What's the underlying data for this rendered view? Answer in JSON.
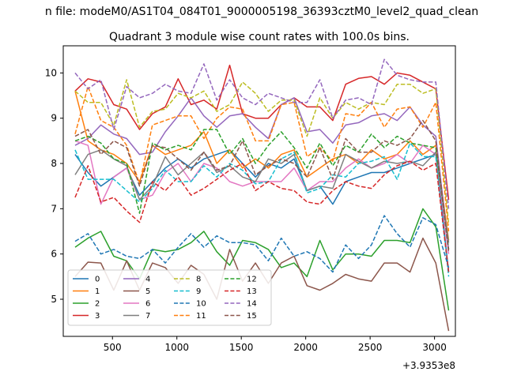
{
  "chart_data": {
    "type": "line",
    "supertitle": "n file: modeM0/AS1T04_084T01_9000005198_36393cztM0_level2_quad_clean",
    "title": "Quadrant 3 module wise count rates with 100.0s bins.",
    "xlabel": "",
    "ylabel": "",
    "x_offset_label": "+3.9353e8",
    "xlim": [
      118,
      3162
    ],
    "ylim": [
      4.18,
      10.6
    ],
    "xticks": [
      500,
      1000,
      1500,
      2000,
      2500,
      3000
    ],
    "yticks": [
      5,
      6,
      7,
      8,
      9,
      10
    ],
    "grid": false,
    "legend_position": "lower-left",
    "legend_columns": 4,
    "x": [
      210,
      310,
      410,
      510,
      610,
      710,
      810,
      910,
      1010,
      1110,
      1210,
      1310,
      1410,
      1510,
      1610,
      1710,
      1810,
      1910,
      2010,
      2110,
      2210,
      2310,
      2410,
      2510,
      2610,
      2710,
      2810,
      2910,
      3010,
      3110
    ],
    "series": [
      {
        "name": "0",
        "color": "#1f77b4",
        "dash": false,
        "values": [
          8.2,
          7.8,
          7.5,
          7.7,
          7.9,
          7.3,
          7.6,
          7.9,
          8.1,
          7.9,
          8.1,
          8.2,
          8.3,
          8.0,
          7.7,
          8.0,
          7.9,
          8.1,
          7.4,
          7.5,
          7.1,
          7.6,
          7.7,
          7.8,
          7.8,
          7.9,
          8.0,
          8.1,
          8.2,
          5.6
        ]
      },
      {
        "name": "1",
        "color": "#ff7f0e",
        "dash": false,
        "values": [
          9.6,
          8.5,
          8.3,
          8.2,
          8.0,
          7.6,
          8.4,
          8.2,
          8.3,
          8.4,
          8.7,
          8.0,
          8.3,
          7.9,
          8.1,
          7.9,
          8.2,
          8.3,
          7.7,
          7.9,
          8.1,
          8.2,
          8.0,
          8.3,
          8.1,
          8.2,
          8.5,
          8.2,
          8.4,
          6.3
        ]
      },
      {
        "name": "2",
        "color": "#2ca02c",
        "dash": false,
        "values": [
          6.15,
          6.35,
          6.5,
          5.95,
          5.85,
          5.45,
          6.1,
          6.05,
          6.1,
          6.25,
          6.5,
          6.05,
          5.75,
          6.3,
          6.25,
          6.1,
          5.7,
          5.8,
          5.5,
          6.3,
          5.65,
          6.0,
          6.0,
          5.95,
          6.3,
          6.3,
          6.25,
          7.0,
          6.6,
          4.75
        ]
      },
      {
        "name": "3",
        "color": "#d62728",
        "dash": false,
        "values": [
          9.6,
          9.87,
          9.8,
          9.3,
          9.2,
          8.75,
          9.1,
          9.25,
          9.87,
          9.3,
          9.4,
          9.2,
          10.17,
          9.1,
          9.0,
          9.0,
          9.3,
          9.45,
          9.25,
          9.25,
          8.95,
          9.75,
          9.88,
          9.92,
          9.75,
          10.0,
          9.95,
          9.8,
          9.65,
          7.2
        ]
      },
      {
        "name": "4",
        "color": "#9467bd",
        "dash": false,
        "values": [
          8.4,
          8.55,
          8.85,
          8.65,
          8.55,
          8.2,
          8.25,
          8.7,
          9.05,
          9.45,
          9.05,
          8.8,
          9.05,
          9.1,
          8.8,
          8.55,
          9.3,
          9.45,
          8.7,
          8.75,
          8.45,
          8.85,
          8.9,
          9.05,
          9.1,
          8.95,
          9.25,
          8.85,
          8.6,
          6.1
        ]
      },
      {
        "name": "5",
        "color": "#8c564b",
        "dash": false,
        "values": [
          5.5,
          5.82,
          5.8,
          5.2,
          5.85,
          5.2,
          5.8,
          5.7,
          5.35,
          5.75,
          5.55,
          5.0,
          6.1,
          5.4,
          5.8,
          5.35,
          5.8,
          5.95,
          5.3,
          5.2,
          5.35,
          5.55,
          5.45,
          5.4,
          5.8,
          5.8,
          5.6,
          6.35,
          5.8,
          4.3
        ]
      },
      {
        "name": "6",
        "color": "#e377c2",
        "dash": false,
        "values": [
          8.5,
          8.4,
          7.1,
          7.7,
          7.9,
          7.2,
          7.3,
          7.8,
          8.0,
          7.6,
          8.0,
          7.9,
          7.6,
          7.5,
          7.6,
          7.6,
          7.6,
          7.9,
          7.4,
          7.6,
          7.6,
          7.9,
          8.1,
          7.9,
          8.0,
          8.2,
          8.0,
          8.4,
          8.2,
          6.0
        ]
      },
      {
        "name": "7",
        "color": "#7f7f7f",
        "dash": false,
        "values": [
          7.75,
          8.2,
          8.3,
          8.1,
          7.95,
          7.2,
          7.5,
          8.15,
          7.75,
          8.0,
          8.25,
          7.8,
          7.95,
          7.7,
          7.6,
          8.1,
          8.0,
          8.2,
          7.4,
          7.5,
          7.45,
          8.2,
          8.05,
          7.9,
          8.05,
          8.0,
          8.05,
          7.95,
          8.25,
          6.25
        ]
      },
      {
        "name": "8",
        "color": "#bcbd22",
        "dash": true,
        "values": [
          9.6,
          9.35,
          9.35,
          8.85,
          9.85,
          8.8,
          9.15,
          9.2,
          9.55,
          9.45,
          9.6,
          9.15,
          9.3,
          9.8,
          9.55,
          9.15,
          9.4,
          9.4,
          8.6,
          9.45,
          9.0,
          9.35,
          9.2,
          9.35,
          9.3,
          9.75,
          9.75,
          9.55,
          9.65,
          6.65
        ]
      },
      {
        "name": "9",
        "color": "#17becf",
        "dash": true,
        "values": [
          8.3,
          7.65,
          7.65,
          7.65,
          7.4,
          7.15,
          7.45,
          7.85,
          7.6,
          7.6,
          7.95,
          7.7,
          8.0,
          7.85,
          7.55,
          7.6,
          8.1,
          8.25,
          7.35,
          7.45,
          7.75,
          7.7,
          8.0,
          8.05,
          8.15,
          7.65,
          8.45,
          8.15,
          8.15,
          5.5
        ]
      },
      {
        "name": "10",
        "color": "#1f77b4",
        "dash": true,
        "values": [
          6.28,
          6.45,
          6.0,
          6.1,
          5.95,
          5.9,
          6.1,
          5.8,
          6.15,
          6.45,
          6.15,
          6.4,
          6.25,
          6.25,
          6.2,
          5.85,
          6.35,
          5.95,
          6.05,
          5.9,
          5.6,
          6.2,
          5.9,
          6.2,
          6.85,
          6.45,
          6.15,
          6.8,
          6.65,
          5.7
        ]
      },
      {
        "name": "11",
        "color": "#ff7f0e",
        "dash": true,
        "values": [
          8.65,
          9.7,
          8.95,
          8.8,
          8.4,
          7.55,
          8.85,
          8.95,
          9.05,
          9.05,
          8.55,
          9.0,
          9.25,
          9.2,
          8.5,
          8.5,
          9.3,
          9.35,
          8.15,
          8.35,
          8.05,
          9.1,
          9.05,
          9.35,
          8.8,
          9.2,
          9.25,
          8.8,
          9.35,
          6.5
        ]
      },
      {
        "name": "12",
        "color": "#2ca02c",
        "dash": true,
        "values": [
          8.5,
          8.6,
          8.45,
          8.1,
          8.0,
          6.9,
          8.45,
          8.3,
          8.4,
          8.3,
          8.75,
          8.75,
          8.2,
          8.55,
          8.0,
          8.4,
          8.7,
          8.35,
          7.9,
          8.45,
          7.95,
          8.4,
          8.25,
          8.65,
          8.35,
          8.6,
          8.45,
          8.4,
          8.35,
          6.1
        ]
      },
      {
        "name": "13",
        "color": "#d62728",
        "dash": true,
        "values": [
          7.25,
          7.95,
          7.15,
          7.25,
          6.95,
          6.7,
          7.6,
          7.4,
          7.7,
          7.3,
          7.45,
          7.65,
          7.85,
          8.0,
          7.4,
          7.6,
          7.45,
          7.4,
          7.15,
          7.1,
          7.4,
          7.6,
          7.5,
          7.45,
          7.75,
          7.95,
          8.05,
          7.85,
          8.0,
          5.6
        ]
      },
      {
        "name": "14",
        "color": "#9467bd",
        "dash": true,
        "values": [
          10.0,
          9.65,
          9.85,
          8.75,
          9.7,
          9.45,
          9.55,
          9.75,
          9.6,
          9.55,
          10.2,
          9.4,
          9.85,
          9.45,
          9.3,
          9.55,
          9.45,
          9.35,
          9.35,
          9.85,
          9.0,
          9.4,
          9.45,
          9.3,
          10.3,
          9.95,
          9.85,
          9.8,
          9.8,
          7.0
        ]
      },
      {
        "name": "15",
        "color": "#8c564b",
        "dash": true,
        "values": [
          8.6,
          8.75,
          8.2,
          8.5,
          8.35,
          7.5,
          8.4,
          8.35,
          8.1,
          7.85,
          8.25,
          7.85,
          7.95,
          8.5,
          7.75,
          7.95,
          8.1,
          8.0,
          7.7,
          8.35,
          7.65,
          8.55,
          8.25,
          8.25,
          8.5,
          8.4,
          8.55,
          8.95,
          8.5,
          6.05
        ]
      }
    ]
  }
}
